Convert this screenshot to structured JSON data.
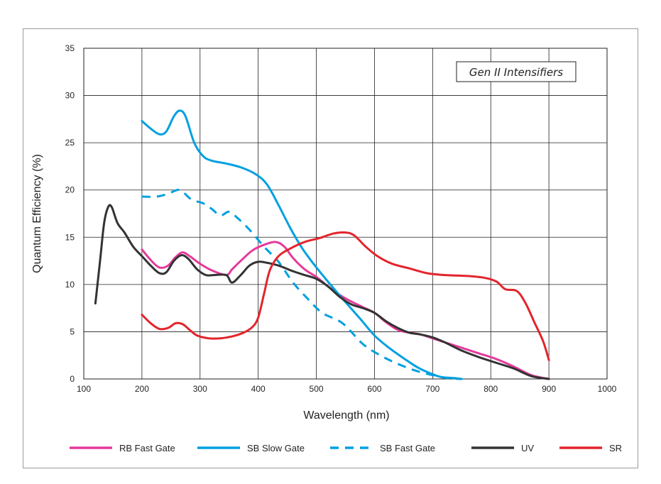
{
  "chart_data": {
    "type": "line",
    "title": "",
    "annotation": "Gen II Intensifiers",
    "xlabel": "Wavelength (nm)",
    "ylabel": "Quantum Efficiency (%)",
    "xlim": [
      100,
      1000
    ],
    "ylim": [
      0,
      35
    ],
    "xticks": [
      100,
      200,
      300,
      400,
      500,
      600,
      700,
      800,
      900,
      1000
    ],
    "yticks": [
      0,
      5,
      10,
      15,
      20,
      25,
      30,
      35
    ],
    "grid": true,
    "legend_position": "bottom",
    "series": [
      {
        "name": "RB Fast Gate",
        "color": "#e5399a",
        "dash": "solid",
        "points": [
          [
            200,
            13.7
          ],
          [
            215,
            12.6
          ],
          [
            230,
            11.8
          ],
          [
            245,
            12.0
          ],
          [
            258,
            12.9
          ],
          [
            270,
            13.4
          ],
          [
            282,
            13.0
          ],
          [
            300,
            12.2
          ],
          [
            320,
            11.5
          ],
          [
            345,
            11.0
          ],
          [
            355,
            11.6
          ],
          [
            370,
            12.5
          ],
          [
            390,
            13.6
          ],
          [
            410,
            14.2
          ],
          [
            430,
            14.5
          ],
          [
            445,
            14.0
          ],
          [
            460,
            12.8
          ],
          [
            480,
            11.6
          ],
          [
            500,
            10.8
          ],
          [
            520,
            9.8
          ],
          [
            540,
            8.9
          ],
          [
            560,
            8.2
          ],
          [
            580,
            7.6
          ],
          [
            600,
            7.0
          ],
          [
            620,
            6.0
          ],
          [
            640,
            5.2
          ],
          [
            660,
            4.9
          ],
          [
            680,
            4.7
          ],
          [
            700,
            4.3
          ],
          [
            720,
            3.9
          ],
          [
            750,
            3.3
          ],
          [
            780,
            2.7
          ],
          [
            810,
            2.1
          ],
          [
            840,
            1.3
          ],
          [
            870,
            0.4
          ],
          [
            900,
            0.0
          ]
        ]
      },
      {
        "name": "SB Slow Gate",
        "color": "#00a0e0",
        "dash": "solid",
        "points": [
          [
            200,
            27.3
          ],
          [
            215,
            26.5
          ],
          [
            230,
            25.9
          ],
          [
            242,
            26.2
          ],
          [
            255,
            27.8
          ],
          [
            265,
            28.4
          ],
          [
            275,
            27.8
          ],
          [
            290,
            25.0
          ],
          [
            305,
            23.6
          ],
          [
            320,
            23.1
          ],
          [
            345,
            22.8
          ],
          [
            370,
            22.4
          ],
          [
            395,
            21.7
          ],
          [
            415,
            20.6
          ],
          [
            435,
            18.4
          ],
          [
            455,
            16.0
          ],
          [
            475,
            13.9
          ],
          [
            495,
            12.2
          ],
          [
            520,
            10.3
          ],
          [
            545,
            8.5
          ],
          [
            575,
            6.4
          ],
          [
            600,
            4.6
          ],
          [
            625,
            3.3
          ],
          [
            650,
            2.2
          ],
          [
            675,
            1.2
          ],
          [
            700,
            0.5
          ],
          [
            715,
            0.2
          ],
          [
            735,
            0.1
          ],
          [
            750,
            0.0
          ]
        ]
      },
      {
        "name": "SB Fast Gate",
        "color": "#00a0e0",
        "dash": "dashed",
        "points": [
          [
            200,
            19.3
          ],
          [
            225,
            19.3
          ],
          [
            245,
            19.6
          ],
          [
            265,
            20.0
          ],
          [
            285,
            19.0
          ],
          [
            305,
            18.6
          ],
          [
            320,
            18.0
          ],
          [
            335,
            17.3
          ],
          [
            350,
            17.7
          ],
          [
            365,
            17.0
          ],
          [
            385,
            15.8
          ],
          [
            410,
            14.0
          ],
          [
            435,
            12.4
          ],
          [
            460,
            10.2
          ],
          [
            485,
            8.5
          ],
          [
            510,
            7.0
          ],
          [
            545,
            5.9
          ],
          [
            580,
            3.7
          ],
          [
            610,
            2.5
          ],
          [
            640,
            1.6
          ],
          [
            670,
            0.9
          ],
          [
            700,
            0.4
          ],
          [
            725,
            0.1
          ],
          [
            750,
            0.0
          ]
        ]
      },
      {
        "name": "UV",
        "color": "#333333",
        "dash": "solid",
        "points": [
          [
            120,
            8.0
          ],
          [
            128,
            12.5
          ],
          [
            135,
            16.5
          ],
          [
            142,
            18.2
          ],
          [
            148,
            18.2
          ],
          [
            158,
            16.5
          ],
          [
            170,
            15.5
          ],
          [
            185,
            14.0
          ],
          [
            200,
            13.0
          ],
          [
            215,
            12.0
          ],
          [
            230,
            11.2
          ],
          [
            242,
            11.3
          ],
          [
            255,
            12.5
          ],
          [
            268,
            13.1
          ],
          [
            280,
            12.7
          ],
          [
            295,
            11.6
          ],
          [
            310,
            11.0
          ],
          [
            325,
            11.0
          ],
          [
            345,
            11.0
          ],
          [
            355,
            10.2
          ],
          [
            370,
            11.0
          ],
          [
            385,
            12.0
          ],
          [
            400,
            12.4
          ],
          [
            415,
            12.3
          ],
          [
            435,
            12.0
          ],
          [
            460,
            11.4
          ],
          [
            480,
            11.0
          ],
          [
            500,
            10.6
          ],
          [
            520,
            9.8
          ],
          [
            540,
            8.7
          ],
          [
            560,
            7.9
          ],
          [
            580,
            7.5
          ],
          [
            600,
            7.0
          ],
          [
            620,
            6.1
          ],
          [
            640,
            5.4
          ],
          [
            660,
            4.9
          ],
          [
            680,
            4.7
          ],
          [
            700,
            4.4
          ],
          [
            720,
            3.9
          ],
          [
            750,
            3.0
          ],
          [
            780,
            2.3
          ],
          [
            810,
            1.7
          ],
          [
            840,
            1.1
          ],
          [
            870,
            0.3
          ],
          [
            900,
            0.0
          ]
        ]
      },
      {
        "name": "SR",
        "color": "#e3242b",
        "dash": "solid",
        "points": [
          [
            200,
            6.8
          ],
          [
            215,
            5.9
          ],
          [
            230,
            5.3
          ],
          [
            245,
            5.4
          ],
          [
            258,
            5.9
          ],
          [
            270,
            5.8
          ],
          [
            282,
            5.2
          ],
          [
            295,
            4.6
          ],
          [
            315,
            4.3
          ],
          [
            335,
            4.3
          ],
          [
            355,
            4.5
          ],
          [
            375,
            4.9
          ],
          [
            390,
            5.5
          ],
          [
            400,
            6.5
          ],
          [
            410,
            9.0
          ],
          [
            420,
            11.5
          ],
          [
            435,
            13.0
          ],
          [
            455,
            13.8
          ],
          [
            480,
            14.5
          ],
          [
            505,
            14.9
          ],
          [
            530,
            15.4
          ],
          [
            550,
            15.5
          ],
          [
            565,
            15.2
          ],
          [
            585,
            14.0
          ],
          [
            605,
            13.0
          ],
          [
            630,
            12.2
          ],
          [
            660,
            11.7
          ],
          [
            690,
            11.2
          ],
          [
            720,
            11.0
          ],
          [
            760,
            10.9
          ],
          [
            790,
            10.7
          ],
          [
            810,
            10.3
          ],
          [
            825,
            9.5
          ],
          [
            845,
            9.3
          ],
          [
            860,
            8.0
          ],
          [
            875,
            6.0
          ],
          [
            890,
            4.0
          ],
          [
            900,
            2.0
          ]
        ]
      }
    ]
  }
}
